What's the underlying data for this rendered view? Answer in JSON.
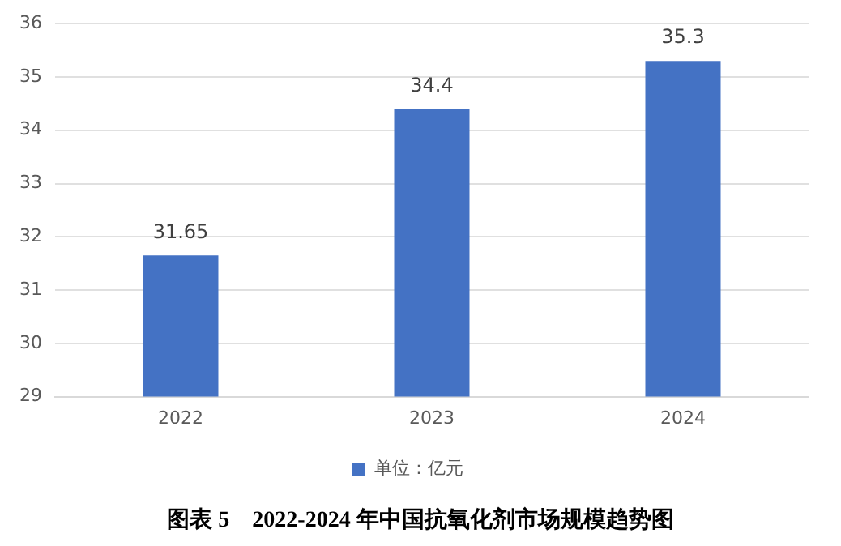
{
  "chart_data": {
    "type": "bar",
    "title": "图表 5　2022-2024 年中国抗氧化剂市场规模趋势图",
    "categories": [
      "2022",
      "2023",
      "2024"
    ],
    "series": [
      {
        "name": "单位：亿元",
        "color": "#4472c4",
        "values": [
          31.65,
          34.4,
          35.3
        ]
      }
    ],
    "ylim": [
      29,
      36
    ],
    "yticks": [
      29,
      30,
      31,
      32,
      33,
      34,
      35,
      36
    ],
    "grid": "y",
    "legend": "bottom",
    "data_labels": true
  }
}
